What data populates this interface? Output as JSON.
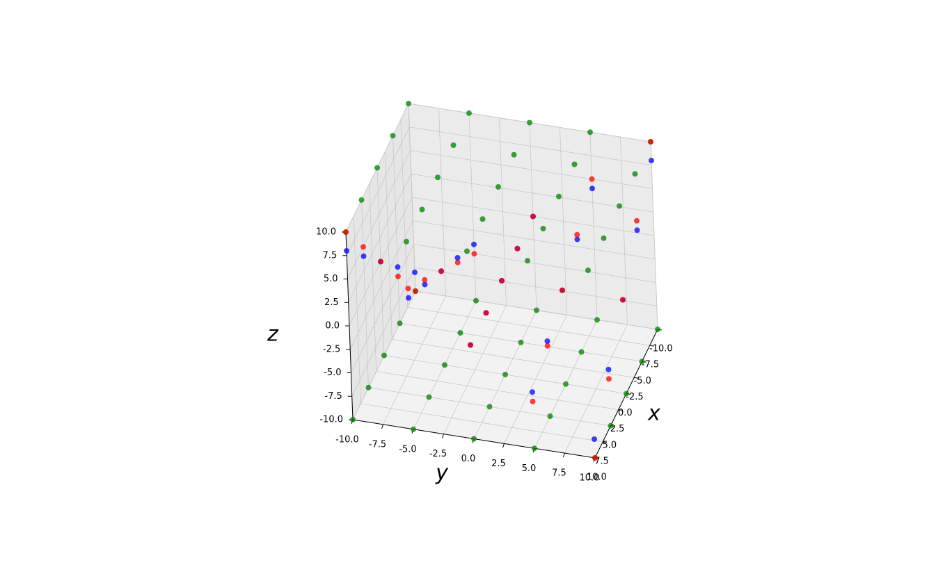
{
  "chart_data": {
    "type": "scatter3d",
    "xlabel": "x",
    "ylabel": "y",
    "zlabel": "z",
    "xlim": [
      -10,
      10
    ],
    "ylim": [
      -10,
      10
    ],
    "zlim": [
      -10,
      10
    ],
    "xticks": [
      {
        "value": -10,
        "label": "-10.0"
      },
      {
        "value": -7.5,
        "label": "-7.5"
      },
      {
        "value": -5,
        "label": "-5.0"
      },
      {
        "value": -2.5,
        "label": "-2.5"
      },
      {
        "value": 0,
        "label": "0.0"
      },
      {
        "value": 2.5,
        "label": "2.5"
      },
      {
        "value": 5,
        "label": "5.0"
      },
      {
        "value": 7.5,
        "label": "7.5"
      },
      {
        "value": 10,
        "label": "10.0"
      }
    ],
    "yticks": [
      {
        "value": -10,
        "label": "-10.0"
      },
      {
        "value": -7.5,
        "label": "-7.5"
      },
      {
        "value": -5,
        "label": "-5.0"
      },
      {
        "value": -2.5,
        "label": "-2.5"
      },
      {
        "value": 0,
        "label": "0.0"
      },
      {
        "value": 2.5,
        "label": "2.5"
      },
      {
        "value": 5,
        "label": "5.0"
      },
      {
        "value": 7.5,
        "label": "7.5"
      },
      {
        "value": 10,
        "label": "10.0"
      }
    ],
    "zticks": [
      {
        "value": -10,
        "label": "-10.0"
      },
      {
        "value": -7.5,
        "label": "-7.5"
      },
      {
        "value": -5,
        "label": "-5.0"
      },
      {
        "value": -2.5,
        "label": "-2.5"
      },
      {
        "value": 0,
        "label": "0.0"
      },
      {
        "value": 2.5,
        "label": "2.5"
      },
      {
        "value": 5,
        "label": "5.0"
      },
      {
        "value": 7.5,
        "label": "7.5"
      },
      {
        "value": 10,
        "label": "10.0"
      }
    ],
    "grid": true,
    "series": [
      {
        "color": "#008000",
        "x": [
          -10,
          -10,
          -10,
          -10,
          -10,
          -5,
          -5,
          -5,
          -5,
          -5,
          0,
          0,
          0,
          0,
          0,
          5,
          5,
          5,
          5,
          5,
          10,
          10,
          10,
          10,
          10,
          -10,
          -10,
          -10,
          -10,
          -10,
          -5,
          -5,
          -5,
          -5,
          -5,
          0,
          0,
          0,
          0,
          0,
          5,
          5,
          5,
          5,
          5,
          10,
          10,
          10,
          10,
          10
        ],
        "y": [
          -10,
          -5,
          0,
          5,
          10,
          -10,
          -5,
          0,
          5,
          10,
          -10,
          -5,
          0,
          5,
          10,
          -10,
          -5,
          0,
          5,
          10,
          -10,
          -5,
          0,
          5,
          10,
          -10,
          -5,
          0,
          5,
          10,
          -10,
          -5,
          0,
          5,
          10,
          -10,
          -5,
          0,
          5,
          10,
          -10,
          -5,
          0,
          5,
          10,
          -10,
          -5,
          0,
          5,
          10
        ],
        "z": [
          -10,
          -10,
          -10,
          -10,
          -10,
          -10,
          -10,
          -10,
          -10,
          -10,
          -10,
          -10,
          -10,
          -10,
          -10,
          -10,
          -10,
          -10,
          -10,
          -10,
          -10,
          -10,
          -10,
          -10,
          -10,
          10,
          10,
          10,
          10,
          10,
          10,
          10,
          10,
          10,
          10,
          10,
          10,
          10,
          10,
          10,
          10,
          10,
          10,
          10,
          10,
          10,
          10,
          10,
          10,
          10
        ]
      },
      {
        "color": "#0000ff",
        "x": [
          -10,
          -10,
          -10,
          -10,
          -10,
          -5,
          -5,
          -5,
          -5,
          -5,
          0,
          0,
          0,
          0,
          0,
          5,
          5,
          5,
          5,
          5,
          10,
          10,
          10,
          10,
          10
        ],
        "y": [
          -10,
          -5,
          0,
          5,
          10,
          -10,
          -5,
          0,
          5,
          10,
          -10,
          -5,
          0,
          5,
          10,
          -10,
          -5,
          0,
          5,
          10,
          -10,
          -5,
          0,
          5,
          10
        ],
        "z": [
          -8,
          -4,
          0,
          4,
          8,
          -4,
          -2,
          0,
          2,
          4,
          0,
          0,
          0,
          0,
          0,
          4,
          2,
          0,
          -2,
          -4,
          8,
          4,
          0,
          -4,
          -8
        ]
      },
      {
        "color": "#ff0000",
        "x": [
          -10,
          -10,
          -10,
          -10,
          -10,
          -5,
          -5,
          -5,
          -5,
          -5,
          0,
          0,
          0,
          0,
          0,
          5,
          5,
          5,
          5,
          5,
          10,
          10,
          10,
          10,
          10
        ],
        "y": [
          -10,
          -5,
          0,
          5,
          10,
          -10,
          -5,
          0,
          5,
          10,
          -10,
          -5,
          0,
          5,
          10,
          -10,
          -5,
          0,
          5,
          10,
          -10,
          -5,
          0,
          5,
          10
        ],
        "z": [
          -10,
          -5,
          0,
          5,
          10,
          -5,
          -2.5,
          0,
          2.5,
          5,
          0,
          0,
          0,
          0,
          0,
          5,
          2.5,
          0,
          -2.5,
          -5,
          10,
          5,
          0,
          -5,
          -10
        ]
      }
    ]
  }
}
